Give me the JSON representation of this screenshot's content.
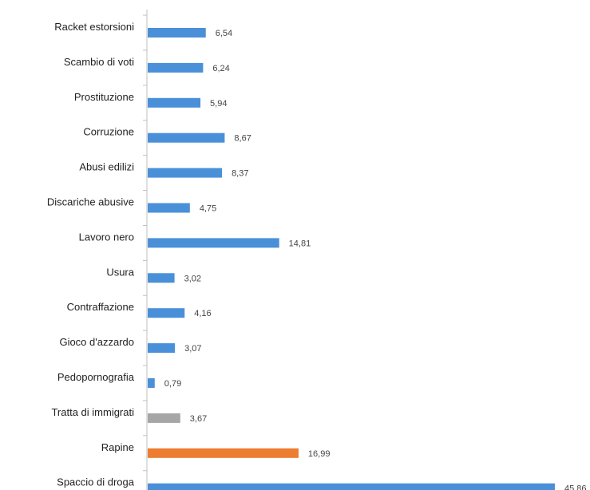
{
  "chart_data": {
    "type": "bar",
    "orientation": "horizontal",
    "title": "",
    "xlabel": "",
    "ylabel": "",
    "grid": false,
    "legend": "none",
    "xlim": [
      0,
      46
    ],
    "categories": [
      "Racket estorsioni",
      "Scambio di voti",
      "Prostituzione",
      "Corruzione",
      "Abusi edilizi",
      "Discariche abusive",
      "Lavoro nero",
      "Usura",
      "Contraffazione",
      "Gioco d'azzardo",
      "Pedopornografia",
      "Tratta di immigrati",
      "Rapine",
      "Spaccio di droga"
    ],
    "values": [
      6.54,
      6.24,
      5.94,
      8.67,
      8.37,
      4.75,
      14.81,
      3.02,
      4.16,
      3.07,
      0.79,
      3.67,
      16.99,
      45.86
    ],
    "value_labels": [
      "6,54",
      "6,24",
      "5,94",
      "8,67",
      "8,37",
      "4,75",
      "14,81",
      "3,02",
      "4,16",
      "3,07",
      "0,79",
      "3,67",
      "16,99",
      "45,86"
    ],
    "colors": [
      "#4a90d9",
      "#4a90d9",
      "#4a90d9",
      "#4a90d9",
      "#4a90d9",
      "#4a90d9",
      "#4a90d9",
      "#4a90d9",
      "#4a90d9",
      "#4a90d9",
      "#4a90d9",
      "#a6a6a6",
      "#ed7d31",
      "#4a90d9"
    ]
  }
}
